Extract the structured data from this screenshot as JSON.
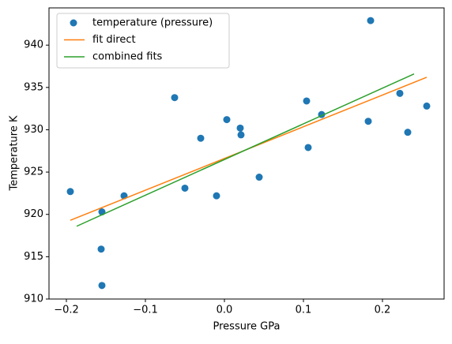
{
  "chart_data": {
    "type": "scatter",
    "xlabel": "Pressure GPa",
    "ylabel": "Temperature K",
    "xlim": [
      -0.222,
      0.278
    ],
    "ylim": [
      910,
      944.4
    ],
    "xticks": [
      {
        "value": -0.2,
        "label": "−0.2"
      },
      {
        "value": -0.1,
        "label": "−0.1"
      },
      {
        "value": 0,
        "label": "0.0"
      },
      0.1,
      0.2
    ],
    "yticks": [
      910,
      915,
      920,
      925,
      930,
      935,
      940
    ],
    "grid": false,
    "legend": "upper left",
    "series": [
      {
        "name": "temperature (pressure)",
        "type": "scatter",
        "color": "#1f77b4",
        "x": [
          -0.195,
          -0.063,
          -0.155,
          -0.127,
          -0.156,
          -0.155,
          -0.05,
          -0.03,
          -0.01,
          0.003,
          0.02,
          0.021,
          0.044,
          0.104,
          0.106,
          0.123,
          0.182,
          0.185,
          0.222,
          0.232,
          0.256
        ],
        "values": [
          922.7,
          933.8,
          920.3,
          922.2,
          915.9,
          911.6,
          923.1,
          929.0,
          922.2,
          931.2,
          930.2,
          929.4,
          924.4,
          933.4,
          927.9,
          931.8,
          931.0,
          942.9,
          934.3,
          929.7,
          932.8
        ]
      },
      {
        "name": "fit direct",
        "type": "line",
        "color": "#ff7f0e",
        "x": [
          -0.195,
          0.256
        ],
        "values": [
          919.3,
          936.2
        ]
      },
      {
        "name": "combined fits",
        "type": "line",
        "color": "#2ca02c",
        "x": [
          -0.187,
          0.24
        ],
        "values": [
          918.6,
          936.6
        ]
      }
    ]
  }
}
